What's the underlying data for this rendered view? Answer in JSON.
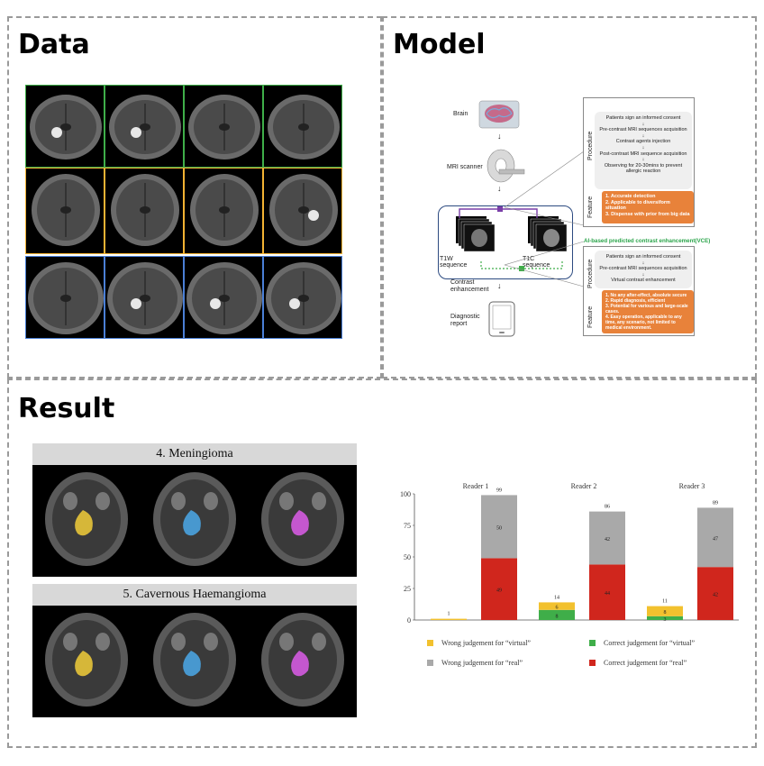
{
  "panels": {
    "data": {
      "title": "Data"
    },
    "model": {
      "title": "Model"
    },
    "result": {
      "title": "Result"
    }
  },
  "model": {
    "brain_label": "Brain",
    "scanner_label": "MRI scanner",
    "t1w_label": "T1W sequence",
    "t1c_label": "T1C sequence",
    "contrast_label": "Contrast enhancement",
    "diagnostic_label": "Diagnostic report",
    "procedure_label": "Procedure",
    "feature_label": "Feature",
    "procedure_steps": [
      "Patients sign an informed consent",
      "Pre-contrast MRI sequences acquisition",
      "Contrast agents injection",
      "Post-contrast MRI sequence acquisition",
      "Observing for 20-30mins to prevent allergic reaction"
    ],
    "features": [
      "1. Accurate detection",
      "2. Applicable to diversiform situation",
      "3. Dispense with prior from big data"
    ],
    "vce_title": "AI-based predicted contrast enhancement(VCE)",
    "vce_steps": [
      "Patients sign an informed consent",
      "Pre-contrast MRI sequences acquisition",
      "Virtual contrast enhancement"
    ],
    "vce_features": [
      "1. No any after-effect, absolute secure",
      "2. Rapid diagnosis, efficient",
      "3. Potential for various and large-scale cases.",
      "4. Easy operation, applicable to any time, any scenario, not limited to medical environment."
    ]
  },
  "result": {
    "case4_title": "4. Meningioma",
    "case5_title": "5. Cavernous Haemangioma",
    "overlay_colors": {
      "yellow": "#e8c53a",
      "blue": "#4aa3e0",
      "magenta": "#d45be0"
    }
  },
  "chart_data": {
    "type": "bar",
    "categories": [
      "Reader  1",
      "Reader  2",
      "Reader  3"
    ],
    "ylim": [
      0,
      100
    ],
    "yticks": [
      0,
      25,
      50,
      75,
      100
    ],
    "virtual": {
      "totals": [
        1,
        14,
        11
      ],
      "correct": [
        0,
        8,
        3
      ],
      "wrong": [
        1,
        6,
        8
      ]
    },
    "real": {
      "totals": [
        99,
        86,
        89
      ],
      "correct": [
        49,
        44,
        42
      ],
      "wrong": [
        50,
        42,
        47
      ]
    },
    "legend": [
      {
        "label": "Wrong judgement for “virtual”",
        "color": "#f2c12e"
      },
      {
        "label": "Correct judgement for “virtual”",
        "color": "#3fae49"
      },
      {
        "label": "Wrong judgement for “real”",
        "color": "#a9a9a9"
      },
      {
        "label": "Correct judgement for “real”",
        "color": "#d0261d"
      }
    ],
    "colors": {
      "virtual_wrong": "#f2c12e",
      "virtual_correct": "#3fae49",
      "real_wrong": "#a9a9a9",
      "real_correct": "#d0261d"
    }
  }
}
